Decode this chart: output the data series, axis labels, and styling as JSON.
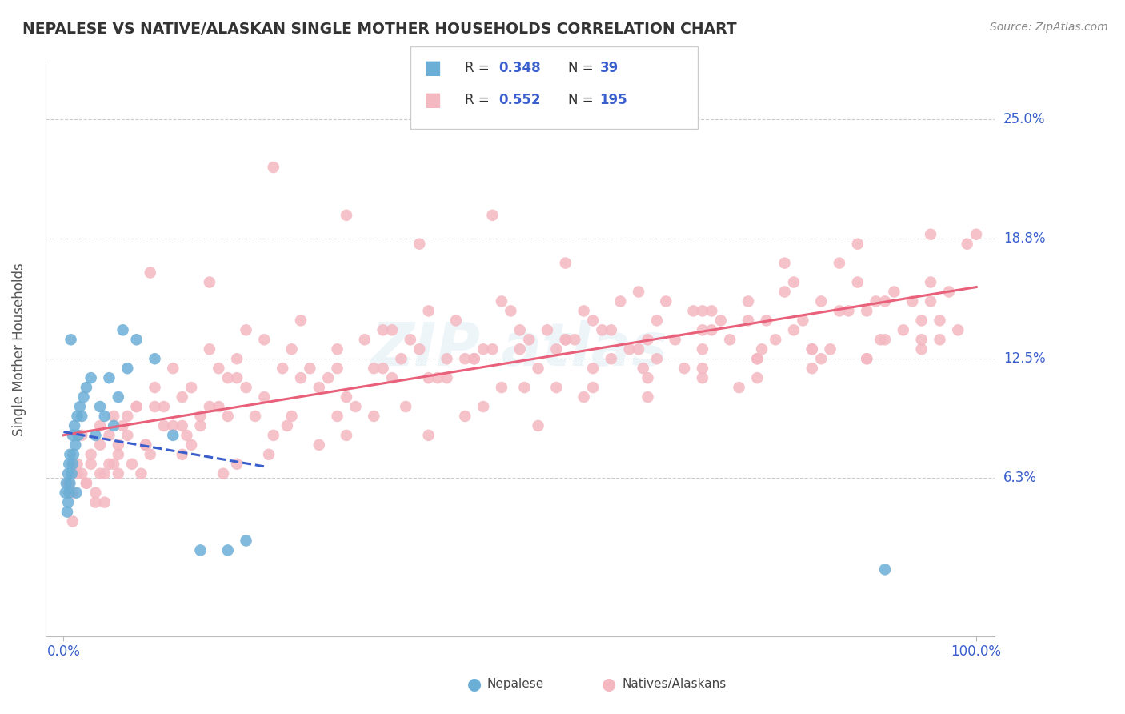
{
  "title": "NEPALESE VS NATIVE/ALASKAN SINGLE MOTHER HOUSEHOLDS CORRELATION CHART",
  "source": "Source: ZipAtlas.com",
  "ylabel": "Single Mother Households",
  "xlim": [
    0,
    100
  ],
  "ylim": [
    -2,
    28
  ],
  "yticks": [
    6.3,
    12.5,
    18.8,
    25.0
  ],
  "ytick_labels": [
    "6.3%",
    "12.5%",
    "18.8%",
    "25.0%"
  ],
  "nepalese_color": "#6baed6",
  "native_color": "#f4b8c1",
  "nepalese_R": 0.348,
  "nepalese_N": 39,
  "native_R": 0.552,
  "native_N": 195,
  "blue_color": "#3a5fcd",
  "background_color": "#ffffff",
  "grid_color": "#cccccc",
  "nepalese_x": [
    0.2,
    0.3,
    0.4,
    0.5,
    0.5,
    0.6,
    0.6,
    0.7,
    0.7,
    0.8,
    0.9,
    1.0,
    1.0,
    1.1,
    1.2,
    1.3,
    1.4,
    1.5,
    1.6,
    1.8,
    2.0,
    2.2,
    2.5,
    3.0,
    3.5,
    4.0,
    4.5,
    5.0,
    5.5,
    6.0,
    6.5,
    7.0,
    8.0,
    10.0,
    12.0,
    15.0,
    18.0,
    20.0,
    90.0
  ],
  "nepalese_y": [
    5.5,
    6.0,
    4.5,
    5.0,
    6.5,
    7.0,
    5.5,
    7.5,
    6.0,
    13.5,
    6.5,
    7.0,
    8.5,
    7.5,
    9.0,
    8.0,
    5.5,
    9.5,
    8.5,
    10.0,
    9.5,
    10.5,
    11.0,
    11.5,
    8.5,
    10.0,
    9.5,
    11.5,
    9.0,
    10.5,
    14.0,
    12.0,
    13.5,
    12.5,
    8.5,
    2.5,
    2.5,
    3.0,
    1.5
  ],
  "native_x": [
    0.5,
    1.0,
    1.5,
    2.0,
    2.5,
    3.0,
    3.5,
    4.0,
    4.5,
    5.0,
    5.5,
    6.0,
    6.5,
    7.0,
    7.5,
    8.0,
    9.0,
    10.0,
    11.0,
    12.0,
    13.0,
    14.0,
    15.0,
    16.0,
    17.0,
    18.0,
    19.0,
    20.0,
    22.0,
    24.0,
    26.0,
    28.0,
    30.0,
    32.0,
    34.0,
    36.0,
    38.0,
    40.0,
    42.0,
    44.0,
    46.0,
    48.0,
    50.0,
    52.0,
    54.0,
    56.0,
    58.0,
    60.0,
    62.0,
    64.0,
    66.0,
    68.0,
    70.0,
    72.0,
    74.0,
    76.0,
    78.0,
    80.0,
    82.0,
    84.0,
    86.0,
    88.0,
    90.0,
    92.0,
    94.0,
    96.0,
    98.0,
    100.0,
    3.0,
    5.0,
    7.0,
    9.0,
    11.0,
    13.0,
    15.0,
    17.0,
    19.0,
    21.0,
    23.0,
    25.0,
    27.0,
    29.0,
    31.0,
    33.0,
    35.0,
    37.0,
    39.0,
    41.0,
    43.0,
    45.0,
    47.0,
    49.0,
    51.0,
    53.0,
    55.0,
    57.0,
    59.0,
    61.0,
    63.0,
    65.0,
    67.0,
    69.0,
    71.0,
    73.0,
    75.0,
    77.0,
    79.0,
    81.0,
    83.0,
    85.0,
    87.0,
    89.0,
    91.0,
    93.0,
    95.0,
    97.0,
    99.0,
    2.0,
    4.0,
    6.0,
    8.0,
    10.0,
    14.0,
    18.0,
    22.0,
    26.0,
    30.0,
    35.0,
    40.0,
    45.0,
    50.0,
    55.0,
    60.0,
    65.0,
    70.0,
    75.0,
    80.0,
    85.0,
    90.0,
    95.0,
    1.5,
    3.5,
    6.0,
    9.5,
    12.0,
    16.0,
    20.0,
    25.0,
    30.0,
    36.0,
    42.0,
    48.0,
    54.0,
    58.0,
    64.0,
    70.0,
    76.0,
    82.0,
    88.0,
    94.0,
    1.0,
    4.5,
    8.5,
    13.5,
    19.0,
    24.5,
    31.0,
    37.5,
    44.0,
    50.5,
    57.0,
    63.5,
    70.0,
    76.5,
    83.0,
    89.5,
    96.0,
    2.5,
    5.5,
    9.0,
    13.0,
    17.5,
    22.5,
    28.0,
    34.0,
    40.0,
    46.0,
    52.0,
    58.0,
    64.0,
    70.0,
    76.0,
    82.0,
    88.0,
    94.0,
    4.0,
    9.5,
    16.0,
    23.0,
    31.0,
    39.0,
    47.0,
    55.0,
    63.0,
    71.0,
    79.0,
    87.0,
    95.0
  ],
  "native_y": [
    6.0,
    5.5,
    7.0,
    6.5,
    6.0,
    7.5,
    5.0,
    8.0,
    6.5,
    7.0,
    9.5,
    6.5,
    9.0,
    8.5,
    7.0,
    10.0,
    8.0,
    10.0,
    9.0,
    12.0,
    10.5,
    11.0,
    9.5,
    13.0,
    10.0,
    11.5,
    12.5,
    14.0,
    13.5,
    12.0,
    14.5,
    11.0,
    13.0,
    10.0,
    12.0,
    14.0,
    13.5,
    15.0,
    11.5,
    12.5,
    13.0,
    15.5,
    14.0,
    12.0,
    11.0,
    13.5,
    14.5,
    12.5,
    13.0,
    11.5,
    15.5,
    12.0,
    13.0,
    14.5,
    11.0,
    12.5,
    13.5,
    14.0,
    12.0,
    13.0,
    15.0,
    12.5,
    13.5,
    14.0,
    13.0,
    13.5,
    14.0,
    19.0,
    7.0,
    8.5,
    9.5,
    8.0,
    10.0,
    7.5,
    9.0,
    12.0,
    11.5,
    9.5,
    8.5,
    13.0,
    12.0,
    11.5,
    10.5,
    13.5,
    14.0,
    12.5,
    13.0,
    11.5,
    14.5,
    12.5,
    13.0,
    15.0,
    13.5,
    14.0,
    13.5,
    15.0,
    14.0,
    15.5,
    13.0,
    14.5,
    13.5,
    15.0,
    14.0,
    13.5,
    15.5,
    14.5,
    16.0,
    14.5,
    15.5,
    15.0,
    16.5,
    15.5,
    16.0,
    15.5,
    16.5,
    16.0,
    18.5,
    8.5,
    9.0,
    7.5,
    10.0,
    11.0,
    8.0,
    9.5,
    10.5,
    11.5,
    9.5,
    12.0,
    11.5,
    12.5,
    13.0,
    13.5,
    14.0,
    12.5,
    15.0,
    14.5,
    16.5,
    17.5,
    15.5,
    19.0,
    6.5,
    5.5,
    8.0,
    7.5,
    9.0,
    10.0,
    11.0,
    9.5,
    12.0,
    11.5,
    12.5,
    11.0,
    13.0,
    12.0,
    13.5,
    14.0,
    12.5,
    13.0,
    15.0,
    14.5,
    4.0,
    5.0,
    6.5,
    8.5,
    7.0,
    9.0,
    8.5,
    10.0,
    9.5,
    11.0,
    10.5,
    12.0,
    11.5,
    13.0,
    12.5,
    13.5,
    14.5,
    6.0,
    7.0,
    8.0,
    9.0,
    6.5,
    7.5,
    8.0,
    9.5,
    8.5,
    10.0,
    9.0,
    11.0,
    10.5,
    12.0,
    11.5,
    13.0,
    12.5,
    13.5,
    6.5,
    17.0,
    16.5,
    22.5,
    20.0,
    18.5,
    20.0,
    17.5,
    16.0,
    15.0,
    17.5,
    18.5,
    15.5
  ]
}
